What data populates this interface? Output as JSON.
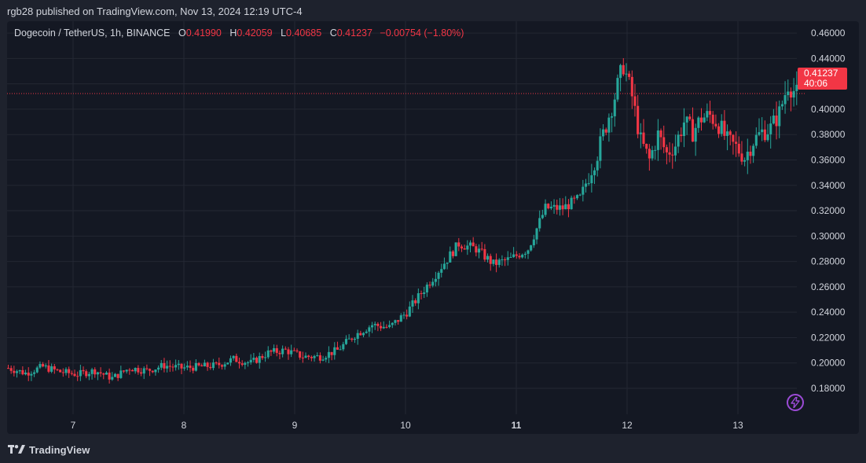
{
  "header": {
    "published_text": "rgb28 published on TradingView.com, Nov 13, 2024 12:19 UTC-4"
  },
  "legend": {
    "symbol": "Dogecoin / TetherUS, 1h, BINANCE",
    "open_label": "O",
    "open": "0.41990",
    "high_label": "H",
    "high": "0.42059",
    "low_label": "L",
    "low": "0.40685",
    "close_label": "C",
    "close": "0.41237",
    "change": "−0.00754 (−1.80%)"
  },
  "price_tag": {
    "price": "0.41237",
    "countdown": "40:06",
    "color": "#f23645"
  },
  "footer": {
    "brand": "TradingView"
  },
  "icons": {
    "bolt": "lightning-bolt-icon",
    "logo": "tradingview-logo-icon"
  },
  "colors": {
    "up": "#26a69a",
    "down": "#f23645",
    "background": "#141823",
    "grid": "#232733"
  },
  "chart_data": {
    "type": "candlestick",
    "interval": "1h",
    "y_axis": {
      "ticks": [
        "0.18000",
        "0.20000",
        "0.22000",
        "0.24000",
        "0.26000",
        "0.28000",
        "0.30000",
        "0.32000",
        "0.34000",
        "0.36000",
        "0.38000",
        "0.40000",
        "0.42000",
        "0.44000",
        "0.46000"
      ],
      "range": [
        0.16,
        0.47
      ]
    },
    "x_axis": {
      "ticks": [
        {
          "label": "7",
          "bold": false
        },
        {
          "label": "8",
          "bold": false
        },
        {
          "label": "9",
          "bold": false
        },
        {
          "label": "10",
          "bold": false
        },
        {
          "label": "11",
          "bold": true
        },
        {
          "label": "12",
          "bold": false
        },
        {
          "label": "13",
          "bold": false
        }
      ]
    },
    "last_price": 0.41237,
    "grid": true,
    "keypoints": [
      [
        0,
        0.196
      ],
      [
        6,
        0.192
      ],
      [
        12,
        0.197
      ],
      [
        18,
        0.193
      ],
      [
        24,
        0.191
      ],
      [
        30,
        0.194
      ],
      [
        36,
        0.188
      ],
      [
        42,
        0.196
      ],
      [
        48,
        0.194
      ],
      [
        54,
        0.198
      ],
      [
        60,
        0.196
      ],
      [
        66,
        0.197
      ],
      [
        72,
        0.198
      ],
      [
        78,
        0.203
      ],
      [
        84,
        0.2
      ],
      [
        90,
        0.208
      ],
      [
        96,
        0.21
      ],
      [
        102,
        0.205
      ],
      [
        108,
        0.205
      ],
      [
        114,
        0.21
      ],
      [
        120,
        0.222
      ],
      [
        126,
        0.23
      ],
      [
        132,
        0.228
      ],
      [
        138,
        0.24
      ],
      [
        144,
        0.258
      ],
      [
        150,
        0.276
      ],
      [
        156,
        0.294
      ],
      [
        162,
        0.29
      ],
      [
        168,
        0.278
      ],
      [
        174,
        0.282
      ],
      [
        180,
        0.29
      ],
      [
        186,
        0.322
      ],
      [
        192,
        0.322
      ],
      [
        198,
        0.33
      ],
      [
        204,
        0.365
      ],
      [
        210,
        0.41
      ],
      [
        213,
        0.435
      ],
      [
        216,
        0.41
      ],
      [
        219,
        0.375
      ],
      [
        222,
        0.36
      ],
      [
        225,
        0.38
      ],
      [
        228,
        0.365
      ],
      [
        231,
        0.372
      ],
      [
        234,
        0.39
      ],
      [
        237,
        0.382
      ],
      [
        240,
        0.393
      ],
      [
        243,
        0.395
      ],
      [
        246,
        0.388
      ],
      [
        249,
        0.375
      ],
      [
        252,
        0.37
      ],
      [
        255,
        0.362
      ],
      [
        258,
        0.375
      ],
      [
        261,
        0.382
      ],
      [
        264,
        0.385
      ],
      [
        267,
        0.397
      ],
      [
        270,
        0.42
      ],
      [
        273,
        0.412
      ]
    ]
  }
}
